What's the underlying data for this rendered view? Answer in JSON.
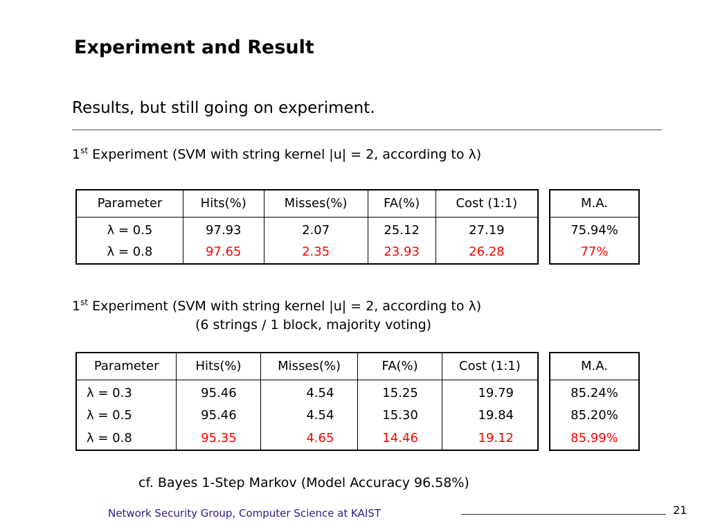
{
  "slide": {
    "title": "Experiment and Result",
    "subtitle": "Results, but still going on experiment."
  },
  "experiment1": {
    "caption_main": "1",
    "caption_sup": "st",
    "caption_rest": " Experiment (SVM with string kernel |u| = 2, according to λ)",
    "headers": [
      "Parameter",
      "Hits(%)",
      "Misses(%)",
      "FA(%)",
      "Cost (1:1)"
    ],
    "rows": [
      {
        "param": "λ = 0.5",
        "hits": "97.93",
        "misses": "2.07",
        "fa": "25.12",
        "cost": "27.19",
        "highlight": false
      },
      {
        "param": "λ = 0.8",
        "hits": "97.65",
        "misses": "2.35",
        "fa": "23.93",
        "cost": "26.28",
        "highlight": true
      }
    ],
    "ma_header": "M.A.",
    "ma_values": [
      {
        "value": "75.94%",
        "highlight": false
      },
      {
        "value": "77%",
        "highlight": true
      }
    ]
  },
  "experiment2": {
    "caption_main": "1",
    "caption_sup": "st",
    "caption_rest": " Experiment (SVM with string kernel |u| = 2, according to λ)",
    "caption_line2": "(6 strings / 1 block, majority voting)",
    "headers": [
      "Parameter",
      "Hits(%)",
      "Misses(%)",
      "FA(%)",
      "Cost (1:1)"
    ],
    "rows": [
      {
        "param": "λ = 0.3",
        "hits": "95.46",
        "misses": "4.54",
        "fa": "15.25",
        "cost": "19.79",
        "highlight": false
      },
      {
        "param": "λ = 0.5",
        "hits": "95.46",
        "misses": "4.54",
        "fa": "15.30",
        "cost": "19.84",
        "highlight": false
      },
      {
        "param": "λ = 0.8",
        "hits": "95.35",
        "misses": "4.65",
        "fa": "14.46",
        "cost": "19.12",
        "highlight": true
      }
    ],
    "ma_header": "M.A.",
    "ma_values": [
      {
        "value": "85.24%",
        "highlight": false
      },
      {
        "value": "85.20%",
        "highlight": false
      },
      {
        "value": "85.99%",
        "highlight": true
      }
    ]
  },
  "note": "cf. Bayes 1-Step Markov (Model Accuracy 96.58%)",
  "footer": {
    "text": "Network Security Group, Computer Science at KAIST",
    "page_number": "21"
  },
  "colors": {
    "highlight": "#ff0000",
    "footer_text": "#2e1a8c"
  }
}
